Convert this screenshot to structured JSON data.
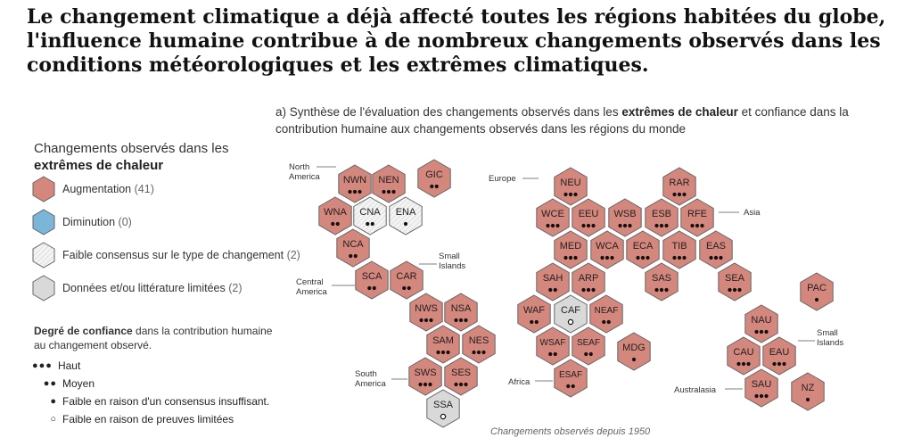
{
  "headline": "Le changement climatique a déjà affecté toutes les régions habitées du globe, l'influence humaine contribue à de nombreux changements observés dans les conditions météorologiques et les extrêmes climatiques.",
  "subtitle": {
    "before": "a) Synthèse de l'évaluation des changements observés dans les ",
    "bold": "extrêmes de chaleur",
    "after": " et confiance dans la contribution humaine aux changements observés dans les régions du monde"
  },
  "legend": {
    "title_line1": "Changements observés dans les",
    "title_bold": "extrêmes de chaleur",
    "items": [
      {
        "label": "Augmentation",
        "count": "(41)",
        "fill": "#d4877d"
      },
      {
        "label": "Diminution",
        "count": "(0)",
        "fill": "#7bb6d8"
      },
      {
        "label": "Faible consensus sur le type de changement",
        "count": "(2)",
        "fill": "#f2f2f2"
      },
      {
        "label": "Données et/ou littérature limitées",
        "count": "(2)",
        "fill": "#d9d9d9"
      }
    ]
  },
  "confidence": {
    "title_bold": "Degré de confiance",
    "title_rest": " dans la contribution humaine au changement observé.",
    "items": [
      {
        "dots": "●●●",
        "label": "Haut"
      },
      {
        "dots": "●●",
        "label": "Moyen"
      },
      {
        "dots": "●",
        "label": "Faible en raison d'un consensus insuffisant."
      },
      {
        "dots": "○",
        "label": "Faible en raison de preuves limitées"
      }
    ]
  },
  "colors": {
    "increase": "#d4877d",
    "decrease": "#7bb6d8",
    "low_agreement": "#f2f2f2",
    "limited": "#d9d9d9",
    "stroke": "#666666"
  },
  "regions": [
    {
      "code": "NWN",
      "status": "increase",
      "confidence": 3
    },
    {
      "code": "NEN",
      "status": "increase",
      "confidence": 3
    },
    {
      "code": "GIC",
      "status": "increase",
      "confidence": 2
    },
    {
      "code": "WNA",
      "status": "increase",
      "confidence": 2
    },
    {
      "code": "CNA",
      "status": "low_agreement",
      "confidence": 2
    },
    {
      "code": "ENA",
      "status": "low_agreement",
      "confidence": 1
    },
    {
      "code": "NCA",
      "status": "increase",
      "confidence": 2
    },
    {
      "code": "SCA",
      "status": "increase",
      "confidence": 2
    },
    {
      "code": "CAR",
      "status": "increase",
      "confidence": 2
    },
    {
      "code": "NWS",
      "status": "increase",
      "confidence": 3
    },
    {
      "code": "NSA",
      "status": "increase",
      "confidence": 3
    },
    {
      "code": "SAM",
      "status": "increase",
      "confidence": 3
    },
    {
      "code": "NES",
      "status": "increase",
      "confidence": 3
    },
    {
      "code": "SWS",
      "status": "increase",
      "confidence": 3
    },
    {
      "code": "SES",
      "status": "increase",
      "confidence": 3
    },
    {
      "code": "SSA",
      "status": "limited",
      "confidence": 0
    },
    {
      "code": "NEU",
      "status": "increase",
      "confidence": 3
    },
    {
      "code": "WCE",
      "status": "increase",
      "confidence": 3
    },
    {
      "code": "EEU",
      "status": "increase",
      "confidence": 3
    },
    {
      "code": "MED",
      "status": "increase",
      "confidence": 3
    },
    {
      "code": "RAR",
      "status": "increase",
      "confidence": 3
    },
    {
      "code": "WSB",
      "status": "increase",
      "confidence": 3
    },
    {
      "code": "ESB",
      "status": "increase",
      "confidence": 3
    },
    {
      "code": "RFE",
      "status": "increase",
      "confidence": 3
    },
    {
      "code": "WCA",
      "status": "increase",
      "confidence": 3
    },
    {
      "code": "ECA",
      "status": "increase",
      "confidence": 3
    },
    {
      "code": "TIB",
      "status": "increase",
      "confidence": 3
    },
    {
      "code": "EAS",
      "status": "increase",
      "confidence": 3
    },
    {
      "code": "SAS",
      "status": "increase",
      "confidence": 3
    },
    {
      "code": "SEA",
      "status": "increase",
      "confidence": 3
    },
    {
      "code": "SAH",
      "status": "increase",
      "confidence": 2
    },
    {
      "code": "ARP",
      "status": "increase",
      "confidence": 3
    },
    {
      "code": "WAF",
      "status": "increase",
      "confidence": 2
    },
    {
      "code": "CAF",
      "status": "limited",
      "confidence": 0
    },
    {
      "code": "NEAF",
      "status": "increase",
      "confidence": 2
    },
    {
      "code": "WSAF",
      "status": "increase",
      "confidence": 2
    },
    {
      "code": "SEAF",
      "status": "increase",
      "confidence": 2
    },
    {
      "code": "ESAF",
      "status": "increase",
      "confidence": 2
    },
    {
      "code": "MDG",
      "status": "increase",
      "confidence": 1
    },
    {
      "code": "PAC",
      "status": "increase",
      "confidence": 1
    },
    {
      "code": "NAU",
      "status": "increase",
      "confidence": 3
    },
    {
      "code": "CAU",
      "status": "increase",
      "confidence": 3
    },
    {
      "code": "EAU",
      "status": "increase",
      "confidence": 3
    },
    {
      "code": "SAU",
      "status": "increase",
      "confidence": 3
    },
    {
      "code": "NZ",
      "status": "increase",
      "confidence": 1
    }
  ],
  "region_labels": {
    "north_america": "North America",
    "europe": "Europe",
    "asia": "Asia",
    "small_islands": "Small Islands",
    "central_america": "Central America",
    "south_america": "South America",
    "africa": "Africa",
    "australasia": "Australasia"
  },
  "footer": "Changements observés depuis 1950"
}
